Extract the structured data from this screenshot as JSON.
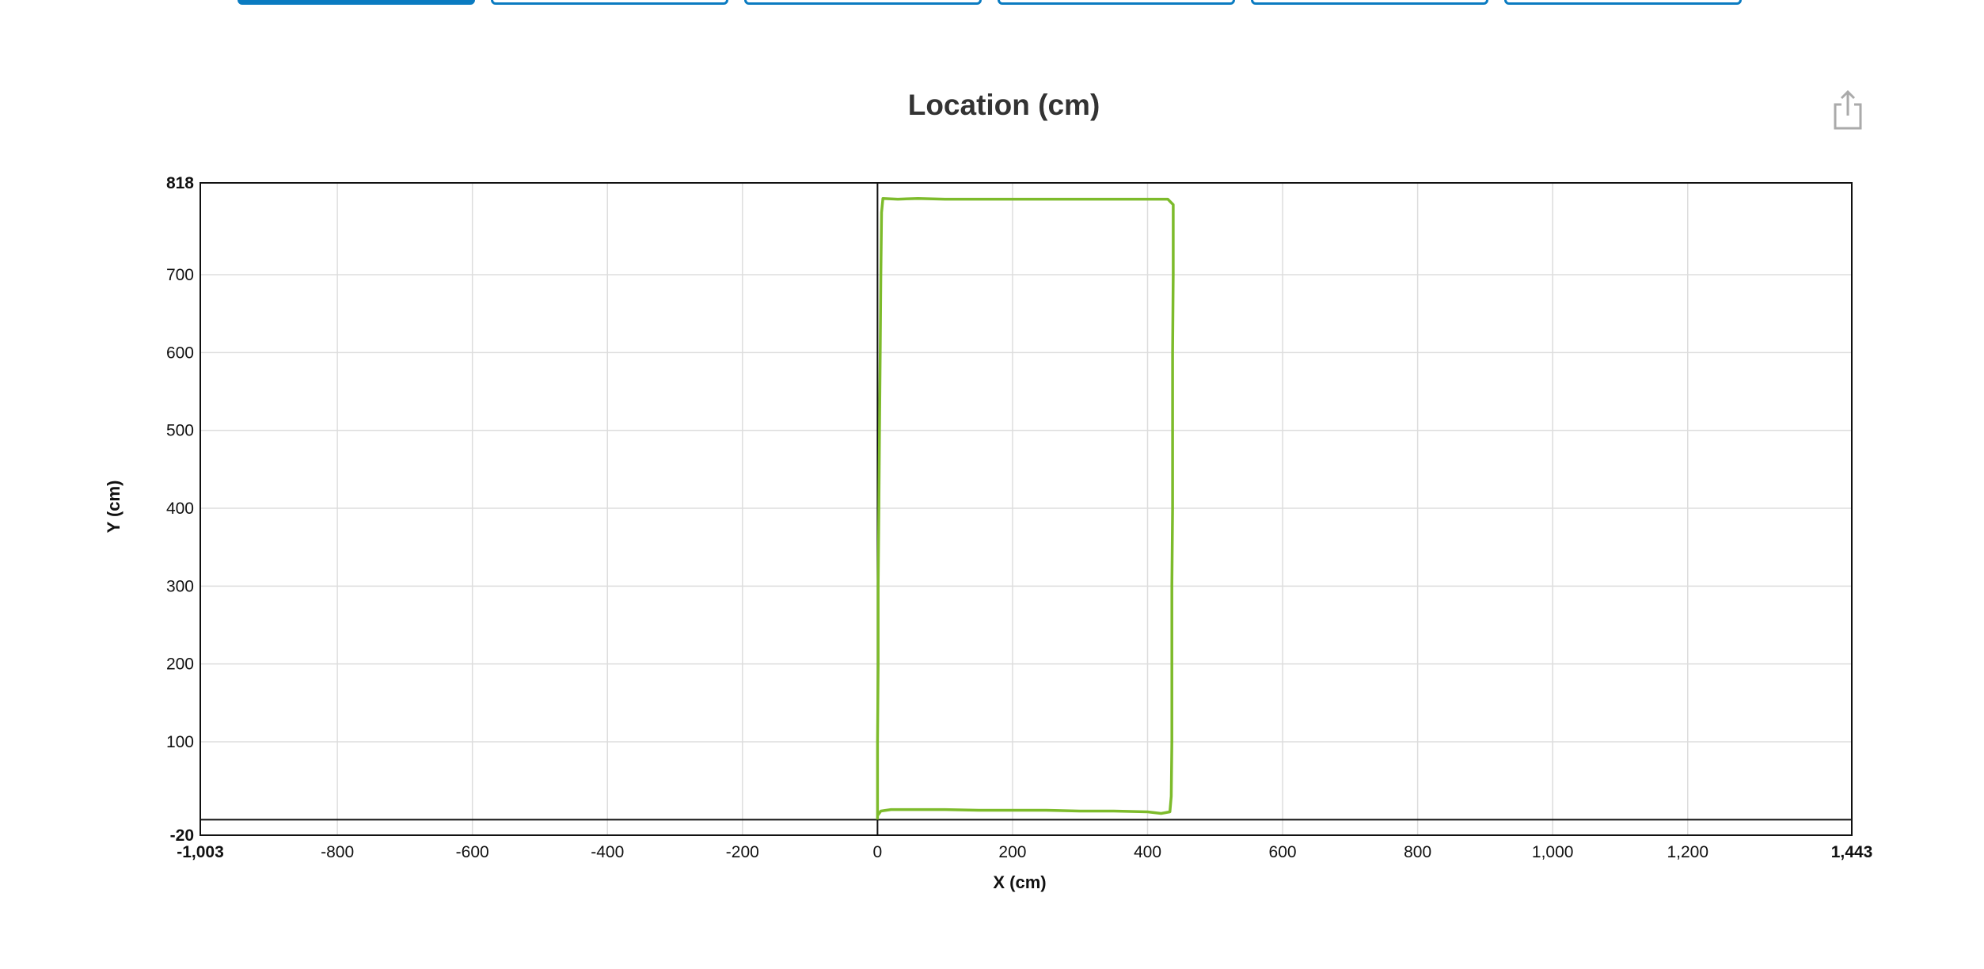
{
  "tabs": [
    {
      "label": "",
      "active": true
    },
    {
      "label": "",
      "active": false
    },
    {
      "label": "",
      "active": false
    },
    {
      "label": "",
      "active": false
    },
    {
      "label": "",
      "active": false
    },
    {
      "label": "",
      "active": false
    }
  ],
  "share_icon": "share-icon",
  "colors": {
    "accent": "#0a7bc1",
    "series": "#7dbb2b",
    "grid": "#dddddd",
    "axis": "#111111"
  },
  "chart_data": {
    "type": "line",
    "title": "Location (cm)",
    "xlabel": "X (cm)",
    "ylabel": "Y (cm)",
    "xlim": [
      -1003,
      1443
    ],
    "ylim": [
      -20,
      818
    ],
    "x_ticks": [
      -1003,
      -800,
      -600,
      -400,
      -200,
      0,
      200,
      400,
      600,
      800,
      1000,
      1200,
      1443
    ],
    "x_tick_labels": [
      "-1,003",
      "-800",
      "-600",
      "-400",
      "-200",
      "0",
      "200",
      "400",
      "600",
      "800",
      "1,000",
      "1,200",
      "1,443"
    ],
    "y_ticks": [
      -20,
      100,
      200,
      300,
      400,
      500,
      600,
      700,
      818
    ],
    "y_tick_labels": [
      "-20",
      "100",
      "200",
      "300",
      "400",
      "500",
      "600",
      "700",
      "818"
    ],
    "grid": true,
    "series": [
      {
        "points": [
          [
            0,
            0
          ],
          [
            0,
            100
          ],
          [
            1,
            200
          ],
          [
            1,
            300
          ],
          [
            2,
            400
          ],
          [
            3,
            500
          ],
          [
            4,
            600
          ],
          [
            5,
            700
          ],
          [
            6,
            780
          ],
          [
            8,
            798
          ],
          [
            30,
            797
          ],
          [
            60,
            798
          ],
          [
            100,
            797
          ],
          [
            150,
            797
          ],
          [
            200,
            797
          ],
          [
            250,
            797
          ],
          [
            300,
            797
          ],
          [
            350,
            797
          ],
          [
            400,
            797
          ],
          [
            430,
            797
          ],
          [
            438,
            790
          ],
          [
            438,
            700
          ],
          [
            437,
            600
          ],
          [
            437,
            500
          ],
          [
            437,
            400
          ],
          [
            436,
            300
          ],
          [
            436,
            200
          ],
          [
            436,
            100
          ],
          [
            435,
            30
          ],
          [
            433,
            10
          ],
          [
            420,
            8
          ],
          [
            400,
            10
          ],
          [
            350,
            11
          ],
          [
            300,
            11
          ],
          [
            250,
            12
          ],
          [
            200,
            12
          ],
          [
            150,
            12
          ],
          [
            100,
            13
          ],
          [
            50,
            13
          ],
          [
            20,
            13
          ],
          [
            5,
            11
          ],
          [
            0,
            5
          ]
        ]
      }
    ]
  }
}
